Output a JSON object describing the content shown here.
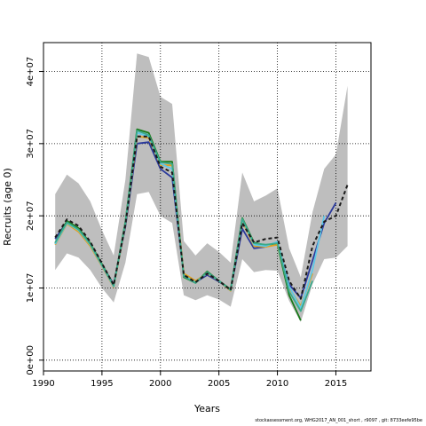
{
  "chart_data": {
    "type": "line",
    "title": "",
    "xlabel": "Years",
    "ylabel": "Recruits (age 0)",
    "xlim": [
      1990,
      2018
    ],
    "ylim": [
      -1500000,
      44000000
    ],
    "x_ticks": [
      1990,
      1995,
      2000,
      2005,
      2010,
      2015
    ],
    "y_ticks": [
      0,
      10000000,
      20000000,
      30000000,
      40000000
    ],
    "y_tick_labels": [
      "0e+00",
      "1e+07",
      "2e+07",
      "3e+07",
      "4e+07"
    ],
    "grid": true,
    "legend": "none",
    "band": {
      "x": [
        1991,
        1992,
        1993,
        1994,
        1995,
        1996,
        1997,
        1998,
        1999,
        2000,
        2001,
        2002,
        2003,
        2004,
        2005,
        2006,
        2007,
        2008,
        2009,
        2010,
        2011,
        2012,
        2013,
        2014,
        2015,
        2016
      ],
      "upper": [
        23000000,
        25700000,
        24500000,
        22000000,
        18000000,
        14500000,
        25000000,
        42500000,
        42000000,
        36500000,
        35500000,
        16500000,
        14500000,
        16200000,
        15000000,
        13500000,
        26000000,
        22000000,
        22800000,
        23800000,
        15500000,
        11500000,
        20500000,
        26500000,
        28500000,
        38000000
      ],
      "lower": [
        12500000,
        14800000,
        14200000,
        12500000,
        10000000,
        8000000,
        13500000,
        23000000,
        23300000,
        20000000,
        19000000,
        9000000,
        8300000,
        9000000,
        8400000,
        7400000,
        14000000,
        12200000,
        12500000,
        12400000,
        8200000,
        5300000,
        10500000,
        14000000,
        14200000,
        15800000
      ]
    },
    "series": [
      {
        "color": "#2b3a9c",
        "dash": false,
        "x": [
          1991,
          1992,
          1993,
          1994,
          1995,
          1996,
          1997,
          1998,
          1999,
          2000,
          2001,
          2002,
          2003,
          2004,
          2005,
          2006,
          2007,
          2008,
          2009,
          2010,
          2011,
          2012,
          2013,
          2014,
          2015
        ],
        "values": [
          16800000,
          19200000,
          18200000,
          16000000,
          13200000,
          10500000,
          18500000,
          30000000,
          30200000,
          26500000,
          25300000,
          11800000,
          10800000,
          11800000,
          10900000,
          9700000,
          18200000,
          15500000,
          15700000,
          16200000,
          10500000,
          8600000,
          13800000,
          19000000,
          21800000
        ]
      },
      {
        "color": "#1a7a1a",
        "dash": false,
        "x": [
          1991,
          1992,
          1993,
          1994,
          1995,
          1996,
          1997,
          1998,
          1999,
          2000,
          2001,
          2002,
          2003,
          2004,
          2005,
          2006,
          2007,
          2008,
          2009,
          2010,
          2011,
          2012
        ],
        "values": [
          16200000,
          19300000,
          18300000,
          16200000,
          13300000,
          10300000,
          19200000,
          32000000,
          31500000,
          27500000,
          27500000,
          11500000,
          10700000,
          12300000,
          11000000,
          9800000,
          19700000,
          16300000,
          15900000,
          16000000,
          9000000,
          5500000
        ]
      },
      {
        "color": "#e0a020",
        "dash": false,
        "x": [
          1991,
          1992,
          1993,
          1994,
          1995,
          1996,
          1997,
          1998,
          1999,
          2000,
          2001,
          2002,
          2003,
          2004,
          2005,
          2006,
          2007,
          2008,
          2009,
          2010,
          2011,
          2012,
          2013
        ],
        "values": [
          16000000,
          18900000,
          17800000,
          15800000,
          13000000,
          10100000,
          18800000,
          31000000,
          30800000,
          27000000,
          27000000,
          12000000,
          11000000,
          12000000,
          11000000,
          9600000,
          19300000,
          15800000,
          15700000,
          16000000,
          10000000,
          7500000,
          12000000
        ]
      },
      {
        "color": "#5ec8e8",
        "dash": false,
        "x": [
          1991,
          1992,
          1993,
          1994,
          1995,
          1996,
          1997,
          1998,
          1999,
          2000,
          2001,
          2002,
          2003,
          2004,
          2005,
          2006,
          2007,
          2008,
          2009,
          2010,
          2011,
          2012,
          2013,
          2014
        ],
        "values": [
          16100000,
          19000000,
          18000000,
          16000000,
          13100000,
          10200000,
          19000000,
          31500000,
          31000000,
          27200000,
          26500000,
          11700000,
          10800000,
          12100000,
          11000000,
          9700000,
          19500000,
          16000000,
          15800000,
          16400000,
          10200000,
          7200000,
          12500000,
          20000000
        ]
      },
      {
        "color": "#3aaa8a",
        "dash": false,
        "x": [
          1991,
          1992,
          1993,
          1994,
          1995,
          1996,
          1997,
          1998,
          1999,
          2000,
          2001,
          2002,
          2003,
          2004,
          2005,
          2006,
          2007,
          2008,
          2009,
          2010,
          2011,
          2012,
          2013
        ],
        "values": [
          16300000,
          19100000,
          18100000,
          16100000,
          13200000,
          10300000,
          19000000,
          31800000,
          31200000,
          27400000,
          27200000,
          11600000,
          10700000,
          12200000,
          11000000,
          9700000,
          19600000,
          16200000,
          16000000,
          16200000,
          9500000,
          6800000,
          11000000
        ]
      },
      {
        "color": "#1a1a1a",
        "dash": true,
        "x": [
          1991,
          1992,
          1993,
          1994,
          1995,
          1996,
          1997,
          1998,
          1999,
          2000,
          2001,
          2002,
          2003,
          2004,
          2005,
          2006,
          2007,
          2008,
          2009,
          2010,
          2011,
          2012,
          2013,
          2014,
          2015,
          2016
        ],
        "values": [
          17000000,
          19500000,
          18600000,
          16400000,
          13400000,
          10400000,
          18800000,
          31000000,
          31000000,
          26800000,
          26000000,
          11800000,
          10800000,
          12000000,
          11000000,
          9700000,
          19000000,
          16300000,
          16800000,
          17000000,
          11000000,
          8500000,
          15800000,
          19200000,
          20000000,
          24300000
        ]
      }
    ]
  },
  "footer": {
    "text": "stockassessment.org,  WHG2017_AN_001_short  , r9097 , git: 8733eefe95be"
  }
}
